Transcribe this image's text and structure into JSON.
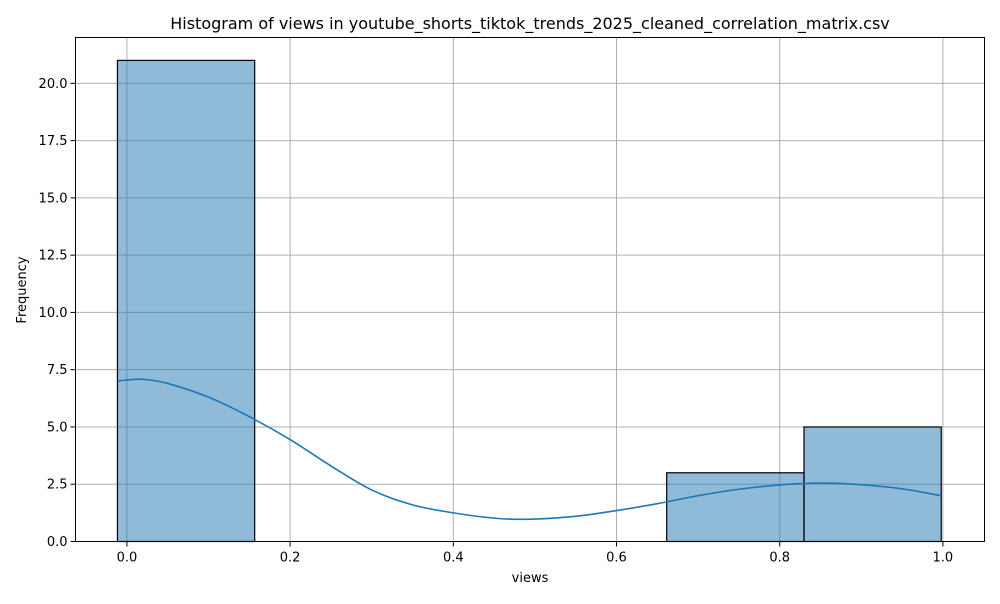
{
  "chart_data": {
    "type": "bar",
    "title": "Histogram of views in youtube_shorts_tiktok_trends_2025_cleaned_correlation_matrix.csv",
    "xlabel": "views",
    "ylabel": "Frequency",
    "xlim": [
      -0.063,
      1.051
    ],
    "ylim": [
      0,
      22
    ],
    "grid": true,
    "xticks": [
      0.0,
      0.2,
      0.4,
      0.6,
      0.8,
      1.0
    ],
    "xtick_labels": [
      "0.0",
      "0.2",
      "0.4",
      "0.6",
      "0.8",
      "1.0"
    ],
    "yticks": [
      0.0,
      2.5,
      5.0,
      7.5,
      10.0,
      12.5,
      15.0,
      17.5,
      20.0
    ],
    "ytick_labels": [
      "0.0",
      "2.5",
      "5.0",
      "7.5",
      "10.0",
      "12.5",
      "15.0",
      "17.5",
      "20.0"
    ],
    "bins": [
      {
        "x0": -0.0116,
        "x1": 0.1566,
        "count": 21
      },
      {
        "x0": 0.1566,
        "x1": 0.3249,
        "count": 0
      },
      {
        "x0": 0.3249,
        "x1": 0.4932,
        "count": 0
      },
      {
        "x0": 0.4932,
        "x1": 0.6615,
        "count": 0
      },
      {
        "x0": 0.6615,
        "x1": 0.8298,
        "count": 3
      },
      {
        "x0": 0.8298,
        "x1": 0.998,
        "count": 5
      }
    ],
    "kde": {
      "x": [
        -0.0116,
        0.0,
        0.02,
        0.05,
        0.1,
        0.15,
        0.2,
        0.25,
        0.3,
        0.35,
        0.4,
        0.45,
        0.49,
        0.55,
        0.6,
        0.65,
        0.7,
        0.75,
        0.8,
        0.85,
        0.9,
        0.95,
        0.998
      ],
      "y": [
        7.0,
        7.05,
        7.08,
        6.9,
        6.3,
        5.45,
        4.45,
        3.3,
        2.25,
        1.6,
        1.25,
        1.02,
        0.97,
        1.1,
        1.35,
        1.65,
        2.0,
        2.28,
        2.47,
        2.55,
        2.48,
        2.3,
        2.0
      ]
    },
    "colors": {
      "bar_fill": "#1f77b4",
      "bar_edge": "#000000",
      "kde_line": "#1f77b4",
      "grid": "#b0b0b0"
    }
  }
}
